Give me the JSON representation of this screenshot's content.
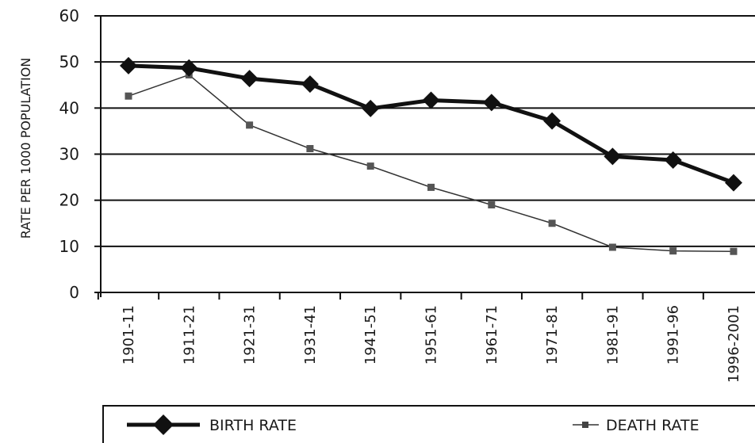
{
  "chart_data": {
    "type": "line",
    "title": "",
    "xlabel": "",
    "ylabel": "RATE PER 1000 POPULATION",
    "categories": [
      "1901-11",
      "1911-21",
      "1921-31",
      "1931-41",
      "1941-51",
      "1951-61",
      "1961-71",
      "1971-81",
      "1981-91",
      "1991-96",
      "1996-2001"
    ],
    "ylim": [
      0,
      60
    ],
    "yticks": [
      0,
      10,
      20,
      30,
      40,
      50,
      60
    ],
    "grid": true,
    "legend_position": "bottom",
    "series": [
      {
        "name": "BIRTH RATE",
        "values": [
          49.2,
          48.7,
          46.4,
          45.2,
          39.9,
          41.7,
          41.2,
          37.2,
          29.5,
          28.7,
          23.8
        ],
        "color": "#111111",
        "marker": "diamond"
      },
      {
        "name": "DEATH RATE",
        "values": [
          42.6,
          47.2,
          36.3,
          31.2,
          27.4,
          22.8,
          19.0,
          15.0,
          9.8,
          9.0,
          8.9
        ],
        "color": "#333333",
        "marker": "square"
      }
    ]
  }
}
